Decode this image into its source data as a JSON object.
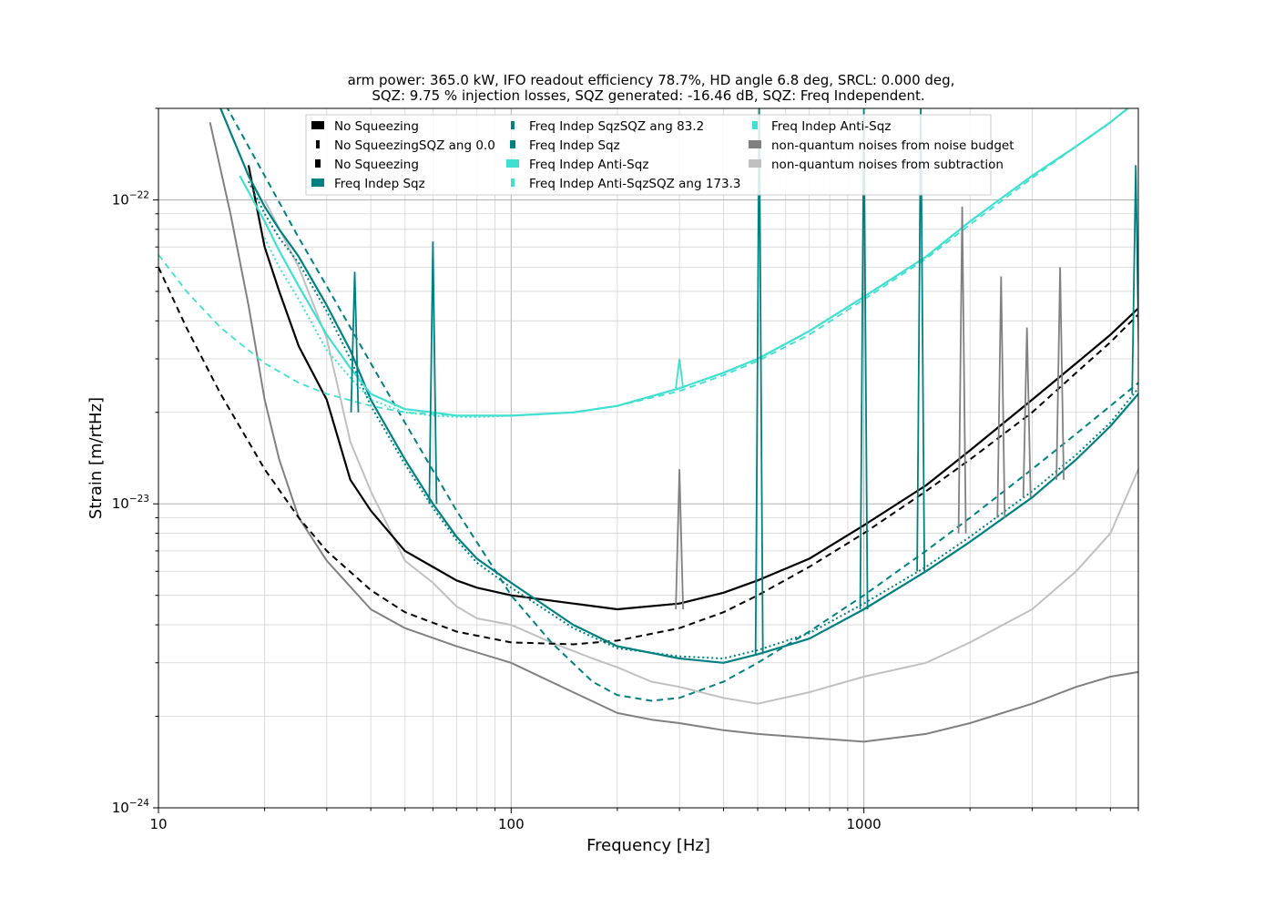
{
  "chart_data": {
    "type": "line",
    "title": [
      "arm power: 365.0 kW, IFO readout efficiency 78.7%, HD angle 6.8 deg, SRCL: 0.000 deg,",
      "SQZ: 9.75 % injection losses, SQZ generated: -16.46 dB, SQZ: Freq Independent."
    ],
    "xlabel": "Frequency [Hz]",
    "ylabel": "Strain [m/rtHz]",
    "xscale": "log",
    "yscale": "log",
    "xlim": [
      10,
      6000
    ],
    "ylim": [
      1e-24,
      2e-22
    ],
    "grid": true,
    "legend_placement": "top-center",
    "x_ticks": [
      {
        "value": 10,
        "label": "10"
      },
      {
        "value": 100,
        "label": "100"
      },
      {
        "value": 1000,
        "label": "1000"
      }
    ],
    "y_ticks": [
      {
        "value": 1e-24,
        "mant": "10",
        "exp": "−24"
      },
      {
        "value": 1e-23,
        "mant": "10",
        "exp": "−23"
      },
      {
        "value": 1e-22,
        "mant": "10",
        "exp": "−22"
      }
    ],
    "legend": [
      {
        "label": "No Squeezing",
        "color": "#000000",
        "style": "solid-wide"
      },
      {
        "label": "No SqueezingSQZ ang 0.0",
        "color": "#000000",
        "style": "dotted"
      },
      {
        "label": "No Squeezing",
        "color": "#000000",
        "style": "dashed"
      },
      {
        "label": "Freq Indep Sqz",
        "color": "#008080",
        "style": "solid-wide"
      },
      {
        "label": "Freq Indep SqzSQZ ang 83.2",
        "color": "#008080",
        "style": "dotted"
      },
      {
        "label": "Freq Indep Sqz",
        "color": "#008080",
        "style": "dashed"
      },
      {
        "label": "Freq Indep Anti-Sqz",
        "color": "#40e0d0",
        "style": "solid-wide"
      },
      {
        "label": "Freq Indep Anti-SqzSQZ ang 173.3",
        "color": "#40e0d0",
        "style": "dotted"
      },
      {
        "label": "Freq Indep Anti-Sqz",
        "color": "#40e0d0",
        "style": "dashed"
      },
      {
        "label": "non-quantum noises from noise budget",
        "color": "#808080",
        "style": "solid-wide"
      },
      {
        "label": "non-quantum noises from subtraction",
        "color": "#c0c0c0",
        "style": "solid-wide"
      }
    ],
    "series": [
      {
        "id": "nq-budget",
        "color": "#808080",
        "width": 2,
        "dash": "",
        "x": [
          14,
          16,
          18,
          20,
          22,
          25,
          30,
          40,
          50,
          70,
          100,
          150,
          200,
          250,
          300,
          400,
          500,
          700,
          1000,
          1500,
          2000,
          3000,
          4000,
          5000,
          6000
        ],
        "y": [
          1.8e-22,
          9e-23,
          4.5e-23,
          2.2e-23,
          1.4e-23,
          9e-24,
          6.5e-24,
          4.5e-24,
          3.9e-24,
          3.4e-24,
          3e-24,
          2.4e-24,
          2.05e-24,
          1.95e-24,
          1.9e-24,
          1.8e-24,
          1.75e-24,
          1.7e-24,
          1.65e-24,
          1.75e-24,
          1.9e-24,
          2.2e-24,
          2.5e-24,
          2.7e-24,
          2.8e-24
        ]
      },
      {
        "id": "nq-subtraction",
        "color": "#c0c0c0",
        "width": 2,
        "dash": "",
        "x": [
          20,
          25,
          30,
          35,
          40,
          50,
          60,
          70,
          80,
          100,
          130,
          170,
          200,
          250,
          300,
          400,
          500,
          700,
          1000,
          1500,
          2000,
          3000,
          4000,
          5000,
          6000
        ],
        "y": [
          1e-22,
          6e-23,
          3.5e-23,
          1.6e-23,
          1.1e-23,
          6.5e-24,
          5.5e-24,
          4.6e-24,
          4.2e-24,
          4e-24,
          3.5e-24,
          3.1e-24,
          2.9e-24,
          2.6e-24,
          2.5e-24,
          2.3e-24,
          2.2e-24,
          2.4e-24,
          2.7e-24,
          3e-24,
          3.5e-24,
          4.5e-24,
          6e-24,
          8e-24,
          1.3e-23
        ]
      },
      {
        "id": "no-sqz-measured",
        "color": "#000000",
        "width": 2.2,
        "dash": "",
        "x": [
          18,
          20,
          22,
          25,
          30,
          35,
          40,
          50,
          60,
          70,
          80,
          100,
          150,
          200,
          300,
          400,
          500,
          700,
          1000,
          1500,
          2000,
          3000,
          4000,
          5000,
          6000
        ],
        "y": [
          1.3e-22,
          7e-23,
          5e-23,
          3.3e-23,
          2.2e-23,
          1.2e-23,
          9.5e-24,
          7e-24,
          6.2e-24,
          5.6e-24,
          5.3e-24,
          5e-24,
          4.7e-24,
          4.5e-24,
          4.7e-24,
          5.1e-24,
          5.6e-24,
          6.6e-24,
          8.5e-24,
          1.15e-23,
          1.5e-23,
          2.2e-23,
          2.9e-23,
          3.6e-23,
          4.4e-23
        ]
      },
      {
        "id": "no-sqz-model",
        "color": "#000000",
        "width": 2,
        "dash": "7,5",
        "x": [
          10,
          12,
          15,
          20,
          25,
          30,
          40,
          50,
          70,
          100,
          150,
          200,
          300,
          400,
          500,
          700,
          1000,
          1500,
          2000,
          3000,
          4000,
          5000,
          6000
        ],
        "y": [
          6e-23,
          3.8e-23,
          2.3e-23,
          1.3e-23,
          9e-24,
          7e-24,
          5.2e-24,
          4.4e-24,
          3.8e-24,
          3.5e-24,
          3.45e-24,
          3.55e-24,
          3.9e-24,
          4.4e-24,
          5e-24,
          6.2e-24,
          8e-24,
          1.1e-23,
          1.4e-23,
          2e-23,
          2.7e-23,
          3.4e-23,
          4.2e-23
        ]
      },
      {
        "id": "fi-sqz-measured",
        "color": "#008080",
        "width": 2.2,
        "dash": "",
        "x": [
          15,
          18,
          20,
          22,
          25,
          30,
          35,
          40,
          50,
          60,
          70,
          80,
          100,
          150,
          200,
          300,
          400,
          500,
          700,
          1000,
          1500,
          2000,
          3000,
          4000,
          5000,
          6000
        ],
        "y": [
          2e-22,
          1.2e-22,
          9.5e-23,
          8e-23,
          6.5e-23,
          4.5e-23,
          3.2e-23,
          2.2e-23,
          1.4e-23,
          1e-23,
          7.8e-24,
          6.6e-24,
          5.5e-24,
          4e-24,
          3.4e-24,
          3.1e-24,
          3e-24,
          3.2e-24,
          3.6e-24,
          4.5e-24,
          6e-24,
          7.5e-24,
          1.05e-23,
          1.4e-23,
          1.8e-23,
          2.3e-23
        ]
      },
      {
        "id": "fi-sqz-dotted",
        "color": "#008080",
        "width": 2,
        "dash": "2,3",
        "x": [
          18,
          20,
          22,
          25,
          30,
          35,
          40,
          50,
          60,
          70,
          80,
          100,
          150,
          200,
          300,
          400,
          500,
          700,
          1000,
          1500,
          2000,
          3000,
          4000,
          5000,
          6000
        ],
        "y": [
          1.15e-22,
          9e-23,
          7.5e-23,
          6.2e-23,
          4.3e-23,
          3e-23,
          2.1e-23,
          1.35e-23,
          9.7e-24,
          7.6e-24,
          6.4e-24,
          5.3e-24,
          3.9e-24,
          3.35e-24,
          3.15e-24,
          3.1e-24,
          3.3e-24,
          3.75e-24,
          4.7e-24,
          6.2e-24,
          7.8e-24,
          1.1e-23,
          1.45e-23,
          1.85e-23,
          2.4e-23
        ]
      },
      {
        "id": "fi-sqz-model",
        "color": "#008080",
        "width": 2,
        "dash": "7,5",
        "x": [
          15,
          20,
          25,
          30,
          40,
          50,
          70,
          100,
          130,
          170,
          200,
          250,
          300,
          400,
          500,
          700,
          1000,
          1500,
          2000,
          3000,
          4000,
          5000,
          6000
        ],
        "y": [
          2.2e-22,
          1.2e-22,
          7.5e-23,
          5.2e-23,
          2.9e-23,
          1.85e-23,
          9.5e-24,
          5e-24,
          3.5e-24,
          2.6e-24,
          2.35e-24,
          2.25e-24,
          2.3e-24,
          2.6e-24,
          3e-24,
          3.8e-24,
          5e-24,
          7e-24,
          9e-24,
          1.3e-23,
          1.7e-23,
          2.1e-23,
          2.5e-23
        ]
      },
      {
        "id": "fi-anti-measured",
        "color": "#40e0d0",
        "width": 2.2,
        "dash": "",
        "x": [
          17,
          20,
          22,
          25,
          30,
          35,
          40,
          50,
          60,
          70,
          80,
          100,
          150,
          200,
          300,
          400,
          500,
          700,
          1000,
          1500,
          2000,
          3000,
          4000,
          5000,
          5600
        ],
        "y": [
          1.2e-22,
          8.5e-23,
          6.8e-23,
          5.2e-23,
          3.6e-23,
          2.8e-23,
          2.3e-23,
          2.05e-23,
          2e-23,
          1.95e-23,
          1.95e-23,
          1.95e-23,
          2e-23,
          2.1e-23,
          2.4e-23,
          2.7e-23,
          3e-23,
          3.7e-23,
          4.8e-23,
          6.5e-23,
          8.5e-23,
          1.2e-22,
          1.5e-22,
          1.8e-22,
          2e-22
        ]
      },
      {
        "id": "fi-anti-dotted",
        "color": "#40e0d0",
        "width": 2,
        "dash": "2,3",
        "x": [
          20,
          22,
          25,
          30,
          35,
          40,
          50,
          60,
          70,
          80,
          100,
          150,
          200,
          300,
          400,
          500,
          700,
          1000,
          1500,
          2000,
          3000,
          4000,
          5000,
          5600
        ],
        "y": [
          7.5e-23,
          6e-23,
          4.7e-23,
          3.2e-23,
          2.6e-23,
          2.2e-23,
          2e-23,
          1.95e-23,
          1.93e-23,
          1.93e-23,
          1.95e-23,
          2e-23,
          2.1e-23,
          2.4e-23,
          2.7e-23,
          3e-23,
          3.7e-23,
          4.8e-23,
          6.5e-23,
          8.5e-23,
          1.2e-22,
          1.5e-22,
          1.8e-22,
          2e-22
        ]
      },
      {
        "id": "fi-anti-model",
        "color": "#40e0d0",
        "width": 1.8,
        "dash": "7,5",
        "x": [
          10,
          12,
          15,
          20,
          25,
          30,
          40,
          50,
          70,
          100,
          150,
          200,
          300,
          400,
          500,
          700,
          1000,
          1500,
          2000,
          3000,
          4000,
          5000,
          5600
        ],
        "y": [
          6.6e-23,
          5e-23,
          3.8e-23,
          2.9e-23,
          2.5e-23,
          2.3e-23,
          2.1e-23,
          2e-23,
          1.95e-23,
          1.95e-23,
          2e-23,
          2.1e-23,
          2.35e-23,
          2.65e-23,
          2.95e-23,
          3.6e-23,
          4.7e-23,
          6.4e-23,
          8.3e-23,
          1.18e-22,
          1.5e-22,
          1.8e-22,
          2e-22
        ]
      }
    ],
    "peaks": [
      {
        "x": 36,
        "y": 5.8e-23,
        "base": 2e-23,
        "color": "#008080"
      },
      {
        "x": 60,
        "y": 7.3e-23,
        "base": 1e-23,
        "color": "#008080"
      },
      {
        "x": 300,
        "y": 1.3e-23,
        "base": 4.5e-24,
        "color": "#808080"
      },
      {
        "x": 300,
        "y": 3e-23,
        "base": 2.4e-23,
        "color": "#40e0d0"
      },
      {
        "x": 505,
        "y": 2e-22,
        "base": 3.2e-24,
        "color": "#008080"
      },
      {
        "x": 1000,
        "y": 2e-22,
        "base": 4.5e-24,
        "color": "#008080"
      },
      {
        "x": 1450,
        "y": 2e-22,
        "base": 6e-24,
        "color": "#008080"
      },
      {
        "x": 1900,
        "y": 9.5e-23,
        "base": 8e-24,
        "color": "#808080"
      },
      {
        "x": 2450,
        "y": 5.6e-23,
        "base": 9e-24,
        "color": "#808080"
      },
      {
        "x": 2900,
        "y": 3.8e-23,
        "base": 1.05e-23,
        "color": "#808080"
      },
      {
        "x": 3600,
        "y": 6e-23,
        "base": 1.2e-23,
        "color": "#808080"
      },
      {
        "x": 5900,
        "y": 1.3e-22,
        "base": 2.3e-23,
        "color": "#008080"
      }
    ]
  }
}
